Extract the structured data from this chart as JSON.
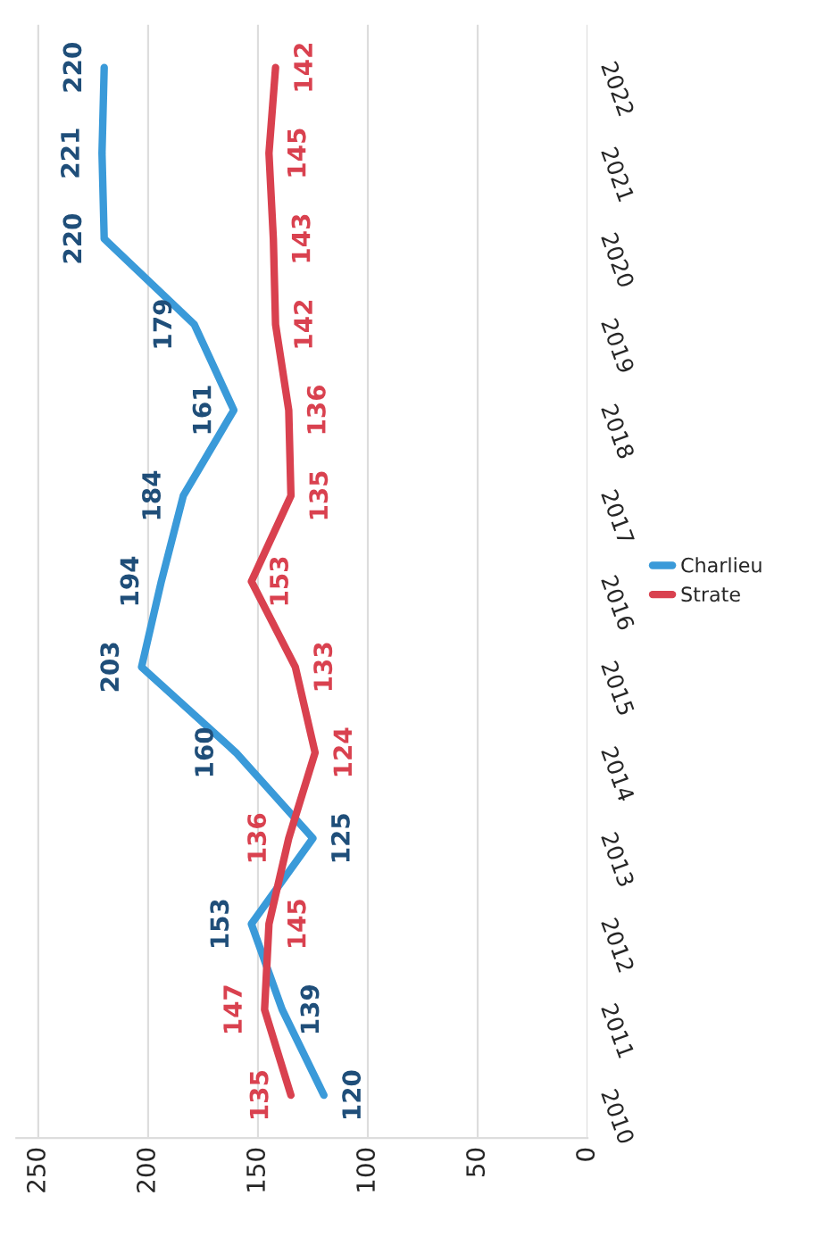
{
  "chart_data": {
    "type": "line",
    "orientation": "horizontal",
    "categories": [
      "2022",
      "2021",
      "2020",
      "2019",
      "2018",
      "2017",
      "2016",
      "2015",
      "2014",
      "2013",
      "2012",
      "2011",
      "2010"
    ],
    "series": [
      {
        "name": "Charlieu",
        "color": "#3a9ad9",
        "values": [
          220,
          221,
          220,
          179,
          161,
          184,
          194,
          203,
          160,
          125,
          153,
          139,
          120
        ]
      },
      {
        "name": "Strate",
        "color": "#d9414f",
        "values": [
          142,
          145,
          143,
          142,
          136,
          135,
          153,
          133,
          124,
          136,
          145,
          147,
          135
        ]
      }
    ],
    "xlim": [
      260,
      0
    ],
    "xticks": [
      0,
      50,
      100,
      150,
      200,
      250
    ],
    "data_labels": true,
    "grid": "x",
    "legend": "right"
  }
}
